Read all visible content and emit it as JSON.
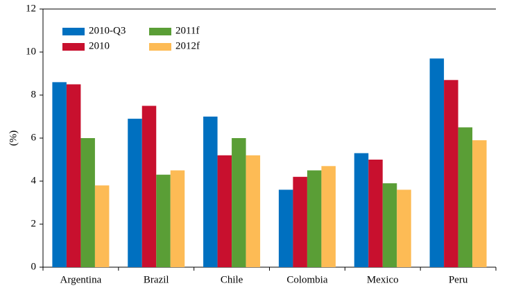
{
  "chart_data": {
    "type": "bar",
    "y_label": "(%)",
    "categories": [
      "Argentina",
      "Brazil",
      "Chile",
      "Colombia",
      "Mexico",
      "Peru"
    ],
    "series": [
      {
        "name": "2010-Q3",
        "color": "#0070c0",
        "values": [
          8.6,
          6.9,
          7.0,
          3.6,
          5.3,
          9.7
        ]
      },
      {
        "name": "2010",
        "color": "#c8102e",
        "values": [
          8.5,
          7.5,
          5.2,
          4.2,
          5.0,
          8.7
        ]
      },
      {
        "name": "2011f",
        "color": "#5a9e36",
        "values": [
          6.0,
          4.3,
          6.0,
          4.5,
          3.9,
          6.5
        ]
      },
      {
        "name": "2012f",
        "color": "#fdbb55",
        "values": [
          3.8,
          4.5,
          5.2,
          4.7,
          3.6,
          5.9
        ]
      }
    ],
    "ylim": [
      0,
      12
    ],
    "yticks": [
      0,
      2,
      4,
      6,
      8,
      10,
      12
    ],
    "legend": "upper left"
  }
}
